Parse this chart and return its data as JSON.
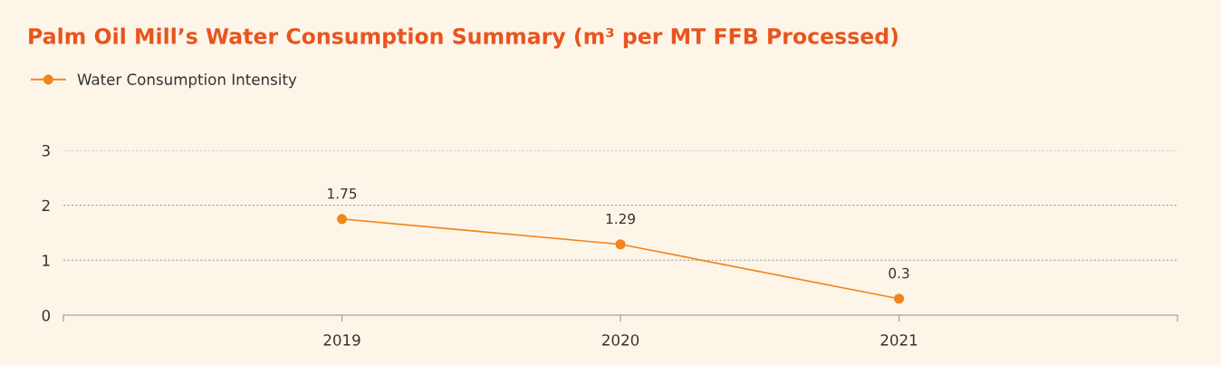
{
  "chart_data": {
    "type": "line",
    "title": "Palm Oil Mill’s Water Consumption Summary (m³ per MT FFB Processed)",
    "categories": [
      null,
      "2019",
      "2020",
      "2021",
      null
    ],
    "series": [
      {
        "name": "Water Consumption Intensity",
        "color": "#f0861a",
        "values": [
          null,
          1.75,
          1.29,
          0.3,
          null
        ]
      }
    ],
    "ylim": [
      0,
      3
    ],
    "yticks": [
      0,
      1,
      2,
      3
    ],
    "grid": "y",
    "legend": "top left",
    "marker": "circle",
    "line_style": "solid",
    "data_labels": true
  }
}
